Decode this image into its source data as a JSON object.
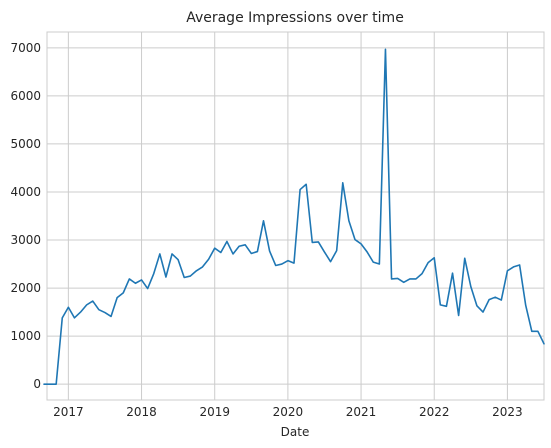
{
  "chart_data": {
    "type": "line",
    "title": "Average Impressions over time",
    "xlabel": "Date",
    "ylabel": "",
    "grid": true,
    "x_start": "2016-09",
    "x_step": "month",
    "xlim": [
      2016.708,
      2023.5
    ],
    "ylim": [
      -330,
      7330
    ],
    "x_ticks": [
      2017,
      2018,
      2019,
      2020,
      2021,
      2022,
      2023
    ],
    "x_tick_labels": [
      "2017",
      "2018",
      "2019",
      "2020",
      "2021",
      "2022",
      "2023"
    ],
    "y_ticks": [
      0,
      1000,
      2000,
      3000,
      4000,
      5000,
      6000,
      7000
    ],
    "y_tick_labels": [
      "0",
      "1000",
      "2000",
      "3000",
      "4000",
      "5000",
      "6000",
      "7000"
    ],
    "series": [
      {
        "name": "Average Impressions",
        "color": "#1f77b4",
        "values": [
          0,
          0,
          0,
          1380,
          1600,
          1380,
          1500,
          1650,
          1730,
          1550,
          1490,
          1410,
          1800,
          1900,
          2190,
          2100,
          2170,
          1990,
          2300,
          2710,
          2230,
          2710,
          2590,
          2220,
          2250,
          2360,
          2440,
          2600,
          2830,
          2740,
          2970,
          2710,
          2870,
          2900,
          2720,
          2760,
          3400,
          2770,
          2470,
          2500,
          2570,
          2520,
          4050,
          4160,
          2950,
          2960,
          2750,
          2550,
          2780,
          4190,
          3400,
          3010,
          2920,
          2750,
          2540,
          2500,
          6970,
          2190,
          2200,
          2120,
          2190,
          2190,
          2300,
          2530,
          2630,
          1650,
          1620,
          2310,
          1430,
          2620,
          2030,
          1630,
          1500,
          1760,
          1810,
          1750,
          2360,
          2440,
          2480,
          1640,
          1100,
          1100,
          840
        ]
      }
    ]
  }
}
